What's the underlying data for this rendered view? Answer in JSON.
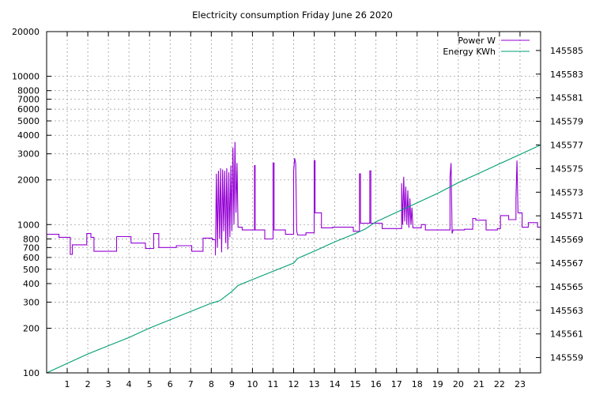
{
  "chart_data": {
    "type": "line",
    "title": "Electricity consumption Friday June 26 2020",
    "xlim": [
      0,
      24
    ],
    "x_ticks": [
      1,
      2,
      3,
      4,
      5,
      6,
      7,
      8,
      9,
      10,
      11,
      12,
      13,
      14,
      15,
      16,
      17,
      18,
      19,
      20,
      21,
      22,
      23
    ],
    "y_left": {
      "scale": "log",
      "range": [
        100,
        20000
      ],
      "ticks": [
        100,
        200,
        300,
        400,
        500,
        600,
        700,
        800,
        1000,
        2000,
        3000,
        4000,
        5000,
        6000,
        7000,
        8000,
        10000,
        20000
      ]
    },
    "y_right": {
      "scale": "linear",
      "range": [
        145557.7,
        145586.6
      ],
      "ticks": [
        145559,
        145561,
        145563,
        145565,
        145567,
        145569,
        145571,
        145573,
        145575,
        145577,
        145579,
        145581,
        145583,
        145585
      ]
    },
    "grid": true,
    "legend_position": "top-right",
    "series": [
      {
        "name": "Power W",
        "color": "#9400d3",
        "axis": "left",
        "style": "steps",
        "points": [
          [
            0.0,
            860
          ],
          [
            0.6,
            860
          ],
          [
            0.6,
            820
          ],
          [
            1.15,
            820
          ],
          [
            1.15,
            630
          ],
          [
            1.25,
            630
          ],
          [
            1.25,
            730
          ],
          [
            1.95,
            730
          ],
          [
            1.95,
            870
          ],
          [
            2.15,
            870
          ],
          [
            2.15,
            820
          ],
          [
            2.3,
            820
          ],
          [
            2.3,
            660
          ],
          [
            3.4,
            660
          ],
          [
            3.4,
            830
          ],
          [
            4.1,
            830
          ],
          [
            4.1,
            750
          ],
          [
            4.8,
            750
          ],
          [
            4.8,
            690
          ],
          [
            5.2,
            690
          ],
          [
            5.2,
            870
          ],
          [
            5.45,
            870
          ],
          [
            5.45,
            700
          ],
          [
            6.3,
            700
          ],
          [
            6.3,
            720
          ],
          [
            7.05,
            720
          ],
          [
            7.05,
            660
          ],
          [
            7.6,
            660
          ],
          [
            7.6,
            810
          ],
          [
            8.05,
            810
          ],
          [
            8.05,
            790
          ],
          [
            8.2,
            790
          ],
          [
            8.2,
            620
          ],
          [
            8.25,
            2200
          ],
          [
            8.3,
            700
          ],
          [
            8.35,
            2300
          ],
          [
            8.4,
            800
          ],
          [
            8.45,
            2400
          ],
          [
            8.5,
            650
          ],
          [
            8.55,
            2350
          ],
          [
            8.6,
            900
          ],
          [
            8.65,
            2300
          ],
          [
            8.7,
            750
          ],
          [
            8.75,
            2400
          ],
          [
            8.8,
            680
          ],
          [
            8.85,
            2250
          ],
          [
            8.9,
            820
          ],
          [
            8.95,
            2500
          ],
          [
            9.0,
            900
          ],
          [
            9.05,
            3300
          ],
          [
            9.1,
            1000
          ],
          [
            9.15,
            3600
          ],
          [
            9.2,
            1200
          ],
          [
            9.25,
            2600
          ],
          [
            9.3,
            960
          ],
          [
            9.5,
            960
          ],
          [
            9.5,
            920
          ],
          [
            10.1,
            920
          ],
          [
            10.1,
            2500
          ],
          [
            10.13,
            2500
          ],
          [
            10.13,
            920
          ],
          [
            10.6,
            920
          ],
          [
            10.6,
            800
          ],
          [
            11.0,
            800
          ],
          [
            11.0,
            2600
          ],
          [
            11.05,
            2600
          ],
          [
            11.05,
            920
          ],
          [
            11.6,
            920
          ],
          [
            11.6,
            860
          ],
          [
            12.0,
            860
          ],
          [
            12.0,
            2300
          ],
          [
            12.05,
            2800
          ],
          [
            12.1,
            2600
          ],
          [
            12.15,
            900
          ],
          [
            12.2,
            850
          ],
          [
            12.6,
            850
          ],
          [
            12.6,
            880
          ],
          [
            13.0,
            880
          ],
          [
            13.0,
            2700
          ],
          [
            13.04,
            2700
          ],
          [
            13.04,
            1200
          ],
          [
            13.35,
            1200
          ],
          [
            13.35,
            950
          ],
          [
            13.9,
            950
          ],
          [
            13.9,
            960
          ],
          [
            14.9,
            960
          ],
          [
            14.9,
            900
          ],
          [
            15.2,
            900
          ],
          [
            15.2,
            2200
          ],
          [
            15.25,
            2200
          ],
          [
            15.25,
            1020
          ],
          [
            15.7,
            1020
          ],
          [
            15.7,
            2300
          ],
          [
            15.75,
            2300
          ],
          [
            15.75,
            1020
          ],
          [
            16.3,
            1020
          ],
          [
            16.3,
            940
          ],
          [
            17.25,
            940
          ],
          [
            17.25,
            1900
          ],
          [
            17.3,
            1000
          ],
          [
            17.35,
            2100
          ],
          [
            17.4,
            1050
          ],
          [
            17.45,
            1800
          ],
          [
            17.5,
            1000
          ],
          [
            17.55,
            1700
          ],
          [
            17.6,
            950
          ],
          [
            17.65,
            1500
          ],
          [
            17.7,
            1000
          ],
          [
            17.75,
            1300
          ],
          [
            17.8,
            950
          ],
          [
            18.2,
            950
          ],
          [
            18.2,
            1000
          ],
          [
            18.4,
            1000
          ],
          [
            18.4,
            920
          ],
          [
            19.6,
            920
          ],
          [
            19.6,
            2100
          ],
          [
            19.65,
            2600
          ],
          [
            19.7,
            870
          ],
          [
            19.75,
            920
          ],
          [
            20.3,
            920
          ],
          [
            20.3,
            930
          ],
          [
            20.7,
            930
          ],
          [
            20.7,
            1100
          ],
          [
            20.85,
            1100
          ],
          [
            20.85,
            1070
          ],
          [
            21.35,
            1070
          ],
          [
            21.35,
            920
          ],
          [
            21.9,
            920
          ],
          [
            21.9,
            940
          ],
          [
            22.05,
            940
          ],
          [
            22.05,
            1150
          ],
          [
            22.45,
            1150
          ],
          [
            22.45,
            1080
          ],
          [
            22.8,
            1080
          ],
          [
            22.8,
            1500
          ],
          [
            22.85,
            2700
          ],
          [
            22.9,
            1200
          ],
          [
            23.1,
            1200
          ],
          [
            23.1,
            960
          ],
          [
            23.4,
            960
          ],
          [
            23.4,
            1030
          ],
          [
            23.85,
            1030
          ],
          [
            23.85,
            960
          ],
          [
            24.0,
            960
          ]
        ]
      },
      {
        "name": "Energy KWh",
        "color": "#009e73",
        "axis": "right",
        "style": "lines",
        "points": [
          [
            0.0,
            145557.7
          ],
          [
            1.0,
            145558.5
          ],
          [
            2.0,
            145559.3
          ],
          [
            3.0,
            145560.0
          ],
          [
            4.0,
            145560.7
          ],
          [
            5.0,
            145561.5
          ],
          [
            6.0,
            145562.2
          ],
          [
            7.0,
            145562.9
          ],
          [
            8.0,
            145563.6
          ],
          [
            8.4,
            145563.8
          ],
          [
            9.0,
            145564.6
          ],
          [
            9.3,
            145565.1
          ],
          [
            10.0,
            145565.6
          ],
          [
            11.0,
            145566.3
          ],
          [
            12.0,
            145567.0
          ],
          [
            12.2,
            145567.4
          ],
          [
            13.0,
            145568.0
          ],
          [
            14.0,
            145568.8
          ],
          [
            15.0,
            145569.5
          ],
          [
            15.5,
            145569.9
          ],
          [
            16.0,
            145570.5
          ],
          [
            17.0,
            145571.3
          ],
          [
            18.0,
            145572.1
          ],
          [
            19.0,
            145572.9
          ],
          [
            20.0,
            145573.8
          ],
          [
            21.0,
            145574.6
          ],
          [
            22.0,
            145575.4
          ],
          [
            23.0,
            145576.2
          ],
          [
            24.0,
            145577.0
          ]
        ]
      }
    ]
  }
}
